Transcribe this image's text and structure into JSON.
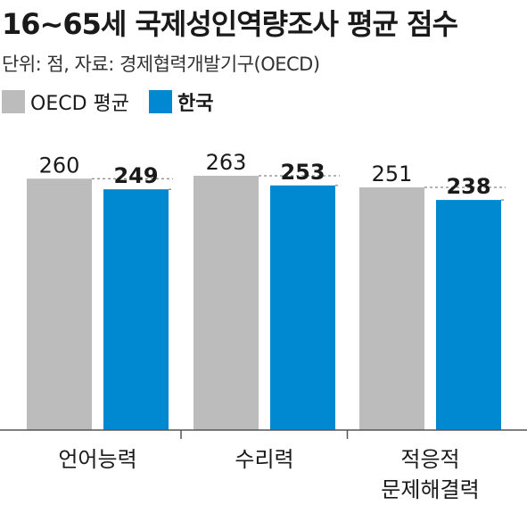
{
  "title": "16~65세 국제성인역량조사 평균 점수",
  "source": "단위: 점, 자료: 경제협력개발기구(OECD)",
  "colors": {
    "oecd": "#bcbcbc",
    "korea": "#0089d0",
    "axis": "#555555"
  },
  "chart_data": {
    "type": "bar",
    "title": "16~65세 국제성인역량조사 평균 점수",
    "categories": [
      "언어능력",
      "수리력",
      "적응적\n문제해결력"
    ],
    "series": [
      {
        "name": "OECD 평균",
        "values": [
          260,
          263,
          251
        ]
      },
      {
        "name": "한국",
        "values": [
          249,
          253,
          238
        ]
      }
    ],
    "ylim": [
      0,
      263
    ],
    "grid": false,
    "legend": "top-left"
  }
}
